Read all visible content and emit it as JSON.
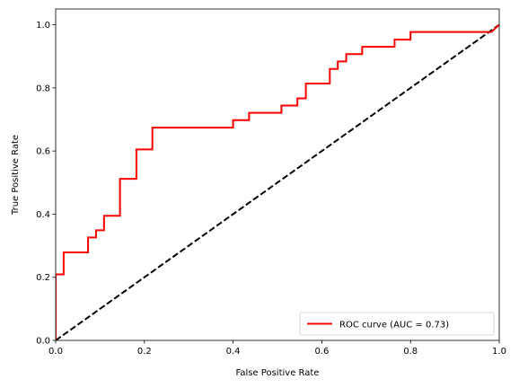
{
  "colors": {
    "roc": "#ff0000",
    "diagonal": "#000000",
    "axes": "#000000",
    "background": "#ffffff"
  },
  "chart_data": {
    "type": "line",
    "title": "",
    "xlabel": "False Positive Rate",
    "ylabel": "True Positive Rate",
    "xlim": [
      0.0,
      1.0
    ],
    "ylim": [
      0.0,
      1.05
    ],
    "x_ticks": [
      "0.0",
      "0.2",
      "0.4",
      "0.6",
      "0.8",
      "1.0"
    ],
    "y_ticks": [
      "0.0",
      "0.2",
      "0.4",
      "0.6",
      "0.8",
      "1.0"
    ],
    "grid": false,
    "legend_position": "lower-right",
    "series": [
      {
        "name": "ROC curve (AUC = 0.73)",
        "style": "solid",
        "color": "#ff0000",
        "x": [
          0.0,
          0.0,
          0.018,
          0.018,
          0.073,
          0.073,
          0.091,
          0.091,
          0.109,
          0.109,
          0.145,
          0.145,
          0.182,
          0.182,
          0.218,
          0.218,
          0.4,
          0.4,
          0.436,
          0.436,
          0.509,
          0.509,
          0.545,
          0.545,
          0.564,
          0.564,
          0.618,
          0.618,
          0.636,
          0.636,
          0.655,
          0.655,
          0.691,
          0.691,
          0.764,
          0.764,
          0.8,
          0.8,
          0.982,
          0.982,
          1.0
        ],
        "y": [
          0.0,
          0.209,
          0.209,
          0.279,
          0.279,
          0.326,
          0.326,
          0.349,
          0.349,
          0.395,
          0.395,
          0.512,
          0.512,
          0.605,
          0.605,
          0.674,
          0.674,
          0.698,
          0.698,
          0.721,
          0.721,
          0.744,
          0.744,
          0.767,
          0.767,
          0.814,
          0.814,
          0.86,
          0.86,
          0.884,
          0.884,
          0.907,
          0.907,
          0.93,
          0.93,
          0.953,
          0.953,
          0.977,
          0.977,
          0.977,
          1.0
        ]
      },
      {
        "name": "",
        "style": "dashed",
        "color": "#000000",
        "x": [
          0.0,
          1.0
        ],
        "y": [
          0.0,
          1.0
        ]
      }
    ]
  }
}
